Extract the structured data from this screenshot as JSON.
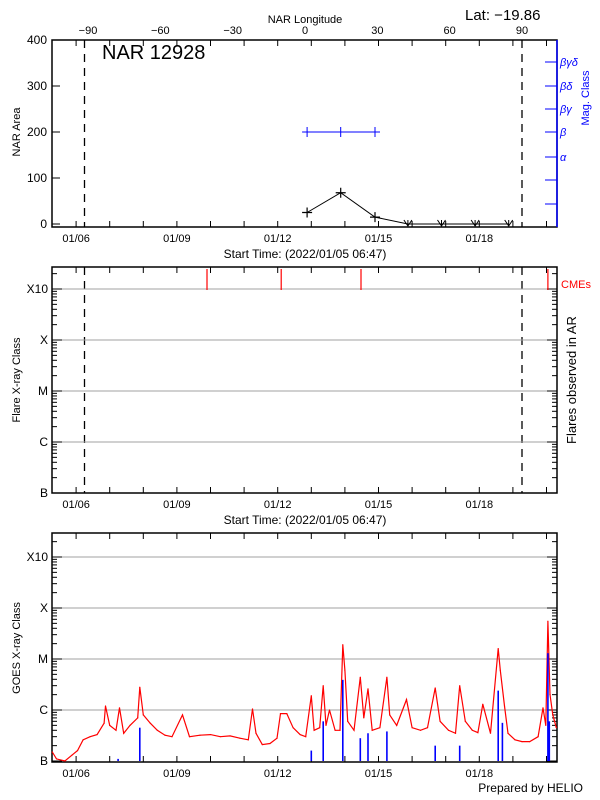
{
  "header": {
    "region_title": "NAR 12928",
    "latitude": "Lat: −19.86",
    "prepared_by": "Prepared by HELIO"
  },
  "colors": {
    "axis": "#000000",
    "mag_class": "#0000ff",
    "cme": "#ff0000",
    "goes_long": "#ff0000",
    "goes_short": "#0000ff",
    "grid": "#a0a0a0"
  },
  "chart_data": [
    {
      "type": "line",
      "panel": "nar-area",
      "title": "NAR 12928",
      "xlabel": "Start Time: (2022/01/05 06:47)",
      "x_range": [
        "2022-01-05 06:47",
        "2022-01-20 07:30"
      ],
      "x_tick_labels": [
        "01/06",
        "01/09",
        "01/12",
        "01/15",
        "01/18"
      ],
      "x_ticks": [
        "2022-01-06 00:00",
        "2022-01-09 00:00",
        "2022-01-12 00:00",
        "2022-01-15 00:00",
        "2022-01-18 00:00"
      ],
      "top_axis_label": "NAR Longitude",
      "top_axis_ticks": [
        -90,
        -60,
        -30,
        0,
        30,
        60,
        90
      ],
      "ylabel": "NAR Area",
      "ylim": [
        0,
        400
      ],
      "y_ticks": [
        0,
        100,
        200,
        300,
        400
      ],
      "right_axis_label": "Mag. Class",
      "right_axis_ticks": [
        "α",
        "β",
        "βγ",
        "βδ",
        "βγδ"
      ],
      "limb_markers": [
        "2022-01-06 06:00",
        "2022-01-19 06:30"
      ],
      "area": [
        {
          "t": "2022-01-12 21:00",
          "v": 25
        },
        {
          "t": "2022-01-13 21:00",
          "v": 68
        },
        {
          "t": "2022-01-14 21:30",
          "v": 15
        },
        {
          "t": "2022-01-15 21:00",
          "v": 0
        },
        {
          "t": "2022-01-16 21:00",
          "v": 0
        },
        {
          "t": "2022-01-17 21:00",
          "v": 0
        },
        {
          "t": "2022-01-18 21:00",
          "v": 0
        }
      ],
      "mag_class": [
        {
          "t": "2022-01-12 21:00",
          "v": "β"
        },
        {
          "t": "2022-01-13 21:00",
          "v": "β"
        },
        {
          "t": "2022-01-14 21:30",
          "v": "β"
        }
      ]
    },
    {
      "type": "scatter",
      "panel": "flares",
      "xlabel": "Start Time: (2022/01/05 06:47)",
      "x_tick_labels": [
        "01/06",
        "01/09",
        "01/12",
        "01/15",
        "01/18"
      ],
      "ylabel": "Flare X-ray Class",
      "right_label": "Flares observed in AR",
      "y_tick_labels": [
        "B",
        "C",
        "M",
        "X",
        "X10"
      ],
      "y_scale": "log",
      "grid": true,
      "limb_markers": [
        "2022-01-06 06:00",
        "2022-01-19 06:30"
      ],
      "cme_label": "CMEs",
      "cmes": [
        "2022-01-09 21:30",
        "2022-01-12 02:30",
        "2022-01-14 11:30",
        "2022-01-20 01:00"
      ],
      "flares": []
    },
    {
      "type": "line",
      "panel": "goes",
      "x_tick_labels": [
        "01/06",
        "01/09",
        "01/12",
        "01/15",
        "01/18"
      ],
      "ylabel": "GOES X-ray Class",
      "y_tick_labels": [
        "B",
        "C",
        "M",
        "X",
        "X10"
      ],
      "y_scale": "log",
      "ylim": [
        1e-07,
        0.01
      ],
      "grid": true,
      "series": [
        {
          "color": "#ff0000",
          "points": [
            [
              "2022-01-05 07:00",
              1.5e-07
            ],
            [
              "2022-01-05 10:00",
              1.1e-07
            ],
            [
              "2022-01-05 16:00",
              1e-07
            ],
            [
              "2022-01-05 21:00",
              1.3e-07
            ],
            [
              "2022-01-06 01:00",
              1.6e-07
            ],
            [
              "2022-01-06 05:00",
              2.6e-07
            ],
            [
              "2022-01-06 10:00",
              3e-07
            ],
            [
              "2022-01-06 15:00",
              3.3e-07
            ],
            [
              "2022-01-06 20:00",
              5.5e-07
            ],
            [
              "2022-01-06 21:00",
              1.2e-06
            ],
            [
              "2022-01-07 00:00",
              5e-07
            ],
            [
              "2022-01-07 04:30",
              4e-07
            ],
            [
              "2022-01-07 07:00",
              1.1e-06
            ],
            [
              "2022-01-07 10:00",
              3.5e-07
            ],
            [
              "2022-01-07 14:30",
              5e-07
            ],
            [
              "2022-01-07 20:00",
              7e-07
            ],
            [
              "2022-01-07 21:30",
              2.8e-06
            ],
            [
              "2022-01-08 00:00",
              8e-07
            ],
            [
              "2022-01-08 05:00",
              5.5e-07
            ],
            [
              "2022-01-08 10:00",
              4e-07
            ],
            [
              "2022-01-08 15:30",
              3.2e-07
            ],
            [
              "2022-01-08 20:30",
              3e-07
            ],
            [
              "2022-01-09 04:00",
              8e-07
            ],
            [
              "2022-01-09 09:00",
              3e-07
            ],
            [
              "2022-01-09 16:30",
              3.2e-07
            ],
            [
              "2022-01-10 00:00",
              3.3e-07
            ],
            [
              "2022-01-10 07:00",
              3e-07
            ],
            [
              "2022-01-10 14:00",
              3.1e-07
            ],
            [
              "2022-01-10 21:00",
              2.8e-07
            ],
            [
              "2022-01-11 03:00",
              2.6e-07
            ],
            [
              "2022-01-11 06:00",
              1.05e-06
            ],
            [
              "2022-01-11 08:30",
              3.5e-07
            ],
            [
              "2022-01-11 13:00",
              2.1e-07
            ],
            [
              "2022-01-11 18:30",
              2.2e-07
            ],
            [
              "2022-01-11 23:30",
              2.8e-07
            ],
            [
              "2022-01-12 02:00",
              8.5e-07
            ],
            [
              "2022-01-12 06:30",
              8.5e-07
            ],
            [
              "2022-01-12 11:00",
              4.5e-07
            ],
            [
              "2022-01-12 16:00",
              3.3e-07
            ],
            [
              "2022-01-12 20:00",
              3e-07
            ],
            [
              "2022-01-13 00:00",
              1.9e-06
            ],
            [
              "2022-01-13 02:00",
              4e-07
            ],
            [
              "2022-01-13 06:00",
              4.5e-07
            ],
            [
              "2022-01-13 08:30",
              3e-06
            ],
            [
              "2022-01-13 10:30",
              5e-07
            ],
            [
              "2022-01-13 13:00",
              1e-06
            ],
            [
              "2022-01-13 17:00",
              4e-07
            ],
            [
              "2022-01-13 20:30",
              4e-07
            ],
            [
              "2022-01-13 22:30",
              1.9e-05
            ],
            [
              "2022-01-14 00:00",
              6e-06
            ],
            [
              "2022-01-14 02:00",
              6e-07
            ],
            [
              "2022-01-14 06:30",
              4e-07
            ],
            [
              "2022-01-14 11:00",
              4.4e-06
            ],
            [
              "2022-01-14 13:30",
              7e-07
            ],
            [
              "2022-01-14 16:30",
              2.6e-06
            ],
            [
              "2022-01-14 19:30",
              4e-07
            ],
            [
              "2022-01-15 01:00",
              4.5e-07
            ],
            [
              "2022-01-15 06:00",
              4.4e-06
            ],
            [
              "2022-01-15 08:00",
              8e-07
            ],
            [
              "2022-01-15 13:00",
              5e-07
            ],
            [
              "2022-01-15 20:00",
              1.6e-06
            ],
            [
              "2022-01-16 00:00",
              4.5e-07
            ],
            [
              "2022-01-16 06:00",
              4e-07
            ],
            [
              "2022-01-16 11:00",
              4.5e-07
            ],
            [
              "2022-01-16 16:30",
              2.7e-06
            ],
            [
              "2022-01-16 20:00",
              6e-07
            ],
            [
              "2022-01-17 02:00",
              4e-07
            ],
            [
              "2022-01-17 07:00",
              3.5e-07
            ],
            [
              "2022-01-17 10:00",
              3e-06
            ],
            [
              "2022-01-17 14:00",
              6e-07
            ],
            [
              "2022-01-17 19:00",
              4e-07
            ],
            [
              "2022-01-17 23:00",
              3.6e-07
            ],
            [
              "2022-01-18 02:30",
              1.3e-06
            ],
            [
              "2022-01-18 08:00",
              3.5e-07
            ],
            [
              "2022-01-18 13:30",
              1.6e-05
            ],
            [
              "2022-01-18 15:00",
              6e-06
            ],
            [
              "2022-01-18 18:00",
              1.2e-06
            ],
            [
              "2022-01-18 20:30",
              3.5e-07
            ],
            [
              "2022-01-19 01:30",
              2.6e-07
            ],
            [
              "2022-01-19 06:30",
              2.4e-07
            ],
            [
              "2022-01-19 12:00",
              2.4e-07
            ],
            [
              "2022-01-19 18:00",
              3e-07
            ],
            [
              "2022-01-19 21:30",
              1.1e-06
            ],
            [
              "2022-01-19 23:30",
              5e-07
            ],
            [
              "2022-01-20 01:00",
              5.5e-05
            ],
            [
              "2022-01-20 02:30",
              2e-06
            ],
            [
              "2022-01-20 04:30",
              8e-07
            ],
            [
              "2022-01-20 07:00",
              4.5e-07
            ]
          ]
        },
        {
          "color": "#0000ff",
          "points": [
            [
              "2022-01-07 06:00",
              1.1e-07
            ],
            [
              "2022-01-07 21:30",
              4.5e-07
            ],
            [
              "2022-01-13 00:00",
              1.6e-07
            ],
            [
              "2022-01-13 08:30",
              6e-07
            ],
            [
              "2022-01-13 22:30",
              3.9e-06
            ],
            [
              "2022-01-14 11:00",
              2.8e-07
            ],
            [
              "2022-01-14 16:30",
              3.5e-07
            ],
            [
              "2022-01-15 06:00",
              3.8e-07
            ],
            [
              "2022-01-16 16:30",
              2e-07
            ],
            [
              "2022-01-17 10:00",
              2e-07
            ],
            [
              "2022-01-18 13:30",
              2.4e-06
            ],
            [
              "2022-01-18 16:30",
              5.6e-07
            ],
            [
              "2022-01-20 01:00",
              1.3e-05
            ],
            [
              "2022-01-20 02:00",
              6e-07
            ]
          ]
        }
      ]
    }
  ]
}
